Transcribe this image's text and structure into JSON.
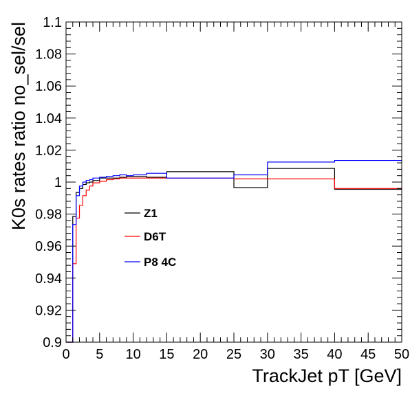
{
  "chart_data": {
    "type": "line",
    "style": "step",
    "xlabel": "TrackJet pT [GeV]",
    "ylabel": "K0s rates ratio no_sel/sel",
    "xlim": [
      0,
      50
    ],
    "ylim": [
      0.9,
      1.1
    ],
    "x_ticks": [
      "0",
      "5",
      "10",
      "15",
      "20",
      "25",
      "30",
      "35",
      "40",
      "45",
      "50"
    ],
    "y_ticks": [
      "0.9",
      "0.92",
      "0.94",
      "0.96",
      "0.98",
      "1",
      "1.02",
      "1.04",
      "1.06",
      "1.08",
      "1.1"
    ],
    "grid": false,
    "legend_position": "left",
    "bin_edges": [
      0,
      0.5,
      1,
      1.5,
      2,
      2.5,
      3,
      3.5,
      4,
      5,
      6,
      7,
      8,
      9,
      10,
      12,
      15,
      20,
      25,
      30,
      40,
      50
    ],
    "series": [
      {
        "name": "Z1",
        "color": "#000000",
        "values": [
          0.9,
          0.9,
          0.9785,
          0.9935,
          0.996,
          0.9985,
          0.9995,
          1.0,
          1.001,
          1.0025,
          1.0025,
          1.0025,
          1.003,
          1.0035,
          1.0035,
          1.003,
          1.0065,
          1.0065,
          0.9965,
          1.0085,
          0.9955
        ]
      },
      {
        "name": "D6T",
        "color": "#ff0000",
        "values": [
          0.9,
          0.9,
          0.949,
          0.9775,
          0.9855,
          0.9915,
          0.995,
          0.9975,
          0.9995,
          1.0005,
          1.0015,
          1.002,
          1.0025,
          1.0025,
          1.0025,
          1.0025,
          1.0025,
          1.0025,
          1.002,
          1.002,
          0.996
        ]
      },
      {
        "name": "P8 4C",
        "color": "#0000ff",
        "values": [
          0.9,
          0.9,
          0.9735,
          0.9915,
          0.9975,
          1.0,
          1.001,
          1.0015,
          1.0025,
          1.003,
          1.0035,
          1.004,
          1.0045,
          1.004,
          1.0045,
          1.0055,
          1.0025,
          1.0025,
          1.0045,
          1.0125,
          1.0135
        ]
      }
    ]
  }
}
